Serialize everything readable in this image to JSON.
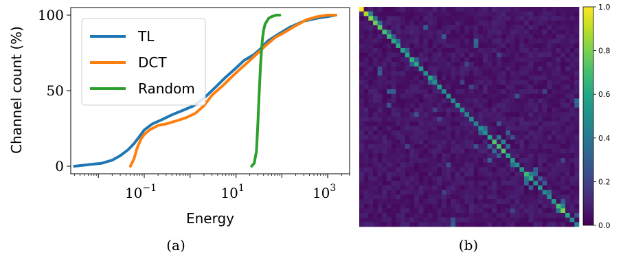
{
  "chart_data": [
    {
      "type": "line",
      "panel_label": "(a)",
      "xlabel": "Energy",
      "ylabel": "Channel count (%)",
      "x_scale": "log",
      "xlim": [
        0.0025,
        3000
      ],
      "ylim": [
        -5,
        105
      ],
      "x_tick_labels": [
        {
          "value": 0.1,
          "base": "10",
          "exp": "−1"
        },
        {
          "value": 10,
          "base": "10",
          "exp": "1"
        },
        {
          "value": 1000,
          "base": "10",
          "exp": "3"
        }
      ],
      "y_ticks": [
        0,
        50,
        100
      ],
      "legend_position": "upper-left",
      "series": [
        {
          "name": "TL",
          "color": "#1f77b4",
          "x": [
            0.003,
            0.006,
            0.012,
            0.02,
            0.03,
            0.045,
            0.06,
            0.08,
            0.1,
            0.15,
            0.25,
            0.4,
            0.7,
            1.2,
            2,
            3.5,
            6,
            10,
            15,
            25,
            35,
            50,
            80,
            150,
            300,
            600,
            1000,
            1500
          ],
          "y": [
            0,
            1,
            2,
            4,
            7,
            11,
            15,
            20,
            24,
            28,
            31,
            34,
            37,
            40,
            45,
            52,
            59,
            65,
            70,
            74,
            78,
            83,
            87,
            92,
            96,
            98,
            99,
            100
          ]
        },
        {
          "name": "DCT",
          "color": "#ff7f0e",
          "x": [
            0.05,
            0.06,
            0.07,
            0.085,
            0.1,
            0.13,
            0.2,
            0.3,
            0.5,
            0.8,
            1.3,
            2,
            3,
            5,
            8,
            12,
            20,
            30,
            45,
            70,
            120,
            200,
            350,
            600,
            1000,
            1500
          ],
          "y": [
            0,
            5,
            12,
            18,
            21,
            24,
            27,
            28,
            30,
            32,
            35,
            40,
            47,
            53,
            59,
            64,
            70,
            75,
            80,
            85,
            89,
            93,
            97,
            99,
            100,
            100
          ]
        },
        {
          "name": "Random",
          "color": "#2ca02c",
          "x": [
            22,
            25,
            28,
            30,
            32,
            34,
            36,
            38,
            40,
            43,
            47,
            52,
            60,
            75,
            90
          ],
          "y": [
            0,
            2,
            10,
            28,
            48,
            65,
            77,
            85,
            90,
            94,
            96,
            98,
            99,
            100,
            100
          ]
        }
      ]
    },
    {
      "type": "heatmap",
      "panel_label": "(b)",
      "colormap": "viridis",
      "colorbar_ticks": [
        "0.0",
        "0.2",
        "0.4",
        "0.6",
        "0.8",
        "1.0"
      ],
      "vmin": 0,
      "vmax": 1,
      "size": 48,
      "diagonal": [
        1.0,
        0.88,
        0.82,
        0.78,
        0.74,
        0.7,
        0.66,
        0.62,
        0.62,
        0.58,
        0.6,
        0.64,
        0.6,
        0.55,
        0.5,
        0.6,
        0.52,
        0.55,
        0.5,
        0.52,
        0.48,
        0.55,
        0.5,
        0.45,
        0.48,
        0.45,
        0.5,
        0.52,
        0.6,
        0.72,
        0.7,
        0.72,
        0.6,
        0.55,
        0.5,
        0.55,
        0.68,
        0.62,
        0.5,
        0.55,
        0.48,
        0.5,
        0.55,
        0.7,
        0.8,
        0.6,
        0.5,
        0.45
      ],
      "off_diagonal": [
        [
          1,
          2,
          0.45
        ],
        [
          2,
          3,
          0.4
        ],
        [
          3,
          4,
          0.35
        ],
        [
          5,
          6,
          0.35
        ],
        [
          6,
          7,
          0.3
        ],
        [
          7,
          8,
          0.35
        ],
        [
          7,
          25,
          0.35
        ],
        [
          8,
          25,
          0.3
        ],
        [
          4,
          14,
          0.3
        ],
        [
          14,
          4,
          0.3
        ],
        [
          13,
          4,
          0.25
        ],
        [
          18,
          6,
          0.3
        ],
        [
          18,
          7,
          0.3
        ],
        [
          21,
          6,
          0.25
        ],
        [
          6,
          18,
          0.3
        ],
        [
          9,
          10,
          0.3
        ],
        [
          28,
          30,
          0.4
        ],
        [
          29,
          31,
          0.45
        ],
        [
          30,
          28,
          0.35
        ],
        [
          31,
          29,
          0.35
        ],
        [
          30,
          32,
          0.35
        ],
        [
          32,
          30,
          0.3
        ],
        [
          27,
          32,
          0.3
        ],
        [
          28,
          33,
          0.25
        ],
        [
          33,
          28,
          0.3
        ],
        [
          34,
          33,
          0.35
        ],
        [
          36,
          37,
          0.45
        ],
        [
          37,
          36,
          0.4
        ],
        [
          36,
          38,
          0.35
        ],
        [
          38,
          36,
          0.35
        ],
        [
          37,
          39,
          0.3
        ],
        [
          39,
          37,
          0.3
        ],
        [
          35,
          38,
          0.3
        ],
        [
          38,
          40,
          0.3
        ],
        [
          40,
          41,
          0.35
        ],
        [
          43,
          44,
          0.45
        ],
        [
          44,
          43,
          0.4
        ],
        [
          42,
          44,
          0.3
        ],
        [
          45,
          47,
          0.25
        ],
        [
          20,
          47,
          0.35
        ],
        [
          21,
          47,
          0.3
        ],
        [
          47,
          20,
          0.3
        ],
        [
          46,
          20,
          0.25
        ],
        [
          34,
          19,
          0.25
        ],
        [
          19,
          34,
          0.25
        ],
        [
          23,
          12,
          0.25
        ],
        [
          12,
          23,
          0.2
        ],
        [
          30,
          25,
          0.25
        ],
        [
          25,
          30,
          0.25
        ],
        [
          17,
          24,
          0.2
        ],
        [
          24,
          17,
          0.2
        ],
        [
          40,
          18,
          0.2
        ],
        [
          18,
          40,
          0.2
        ],
        [
          10,
          30,
          0.2
        ],
        [
          30,
          10,
          0.2
        ],
        [
          44,
          33,
          0.2
        ],
        [
          33,
          44,
          0.2
        ],
        [
          16,
          22,
          0.2
        ],
        [
          22,
          16,
          0.2
        ],
        [
          26,
          27,
          0.35
        ],
        [
          27,
          26,
          0.3
        ],
        [
          15,
          16,
          0.3
        ],
        [
          16,
          15,
          0.3
        ],
        [
          11,
          12,
          0.3
        ],
        [
          12,
          11,
          0.3
        ]
      ]
    }
  ]
}
